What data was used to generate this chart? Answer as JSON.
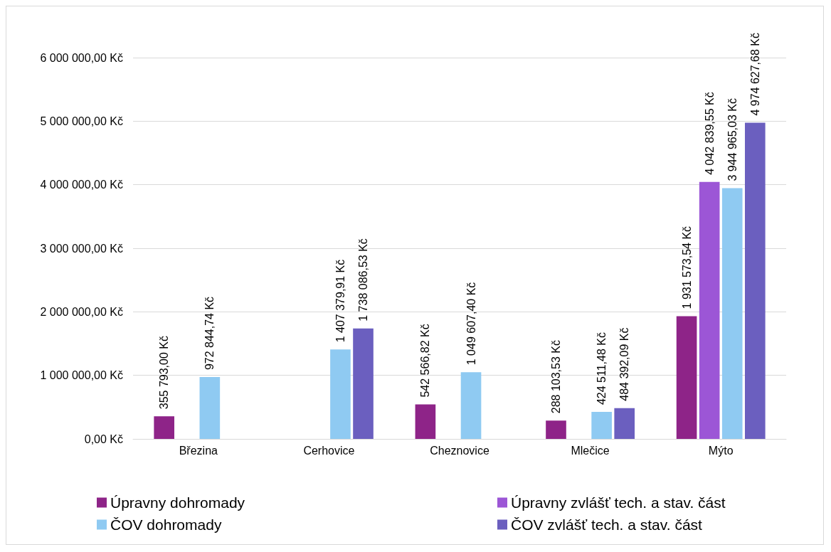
{
  "chart_data": {
    "type": "bar",
    "categories": [
      "Březina",
      "Cerhovice",
      "Cheznovice",
      "Mlečice",
      "Mýto"
    ],
    "series": [
      {
        "name": "Úpravny dohromady",
        "color": "#8e2488",
        "values": [
          355793.0,
          null,
          542566.82,
          288103.53,
          1931573.54
        ],
        "value_labels": [
          "355 793,00 Kč",
          null,
          "542 566,82 Kč",
          "288 103,53 Kč",
          "1 931 573,54 Kč"
        ]
      },
      {
        "name": "Úpravny zvlášť tech. a stav. část",
        "color": "#9c56d6",
        "values": [
          null,
          null,
          null,
          null,
          4042839.55
        ],
        "value_labels": [
          null,
          null,
          null,
          null,
          "4 042 839,55 Kč"
        ]
      },
      {
        "name": "ČOV dohromady",
        "color": "#8fcaf2",
        "values": [
          972844.74,
          1407379.91,
          1049607.4,
          424511.48,
          3944965.03
        ],
        "value_labels": [
          "972 844,74 Kč",
          "1 407 379,91 Kč",
          "1 049 607,40 Kč",
          "424 511,48 Kč",
          "3 944 965,03 Kč"
        ]
      },
      {
        "name": "ČOV zvlášť tech. a stav. část",
        "color": "#6b5fbf",
        "values": [
          null,
          1738086.53,
          null,
          484392.09,
          4974627.68
        ],
        "value_labels": [
          null,
          "1 738 086,53 Kč",
          null,
          "484 392,09 Kč",
          "4 974 627,68 Kč"
        ]
      }
    ],
    "ylim": [
      0,
      6000000
    ],
    "yticks": [
      {
        "value": 0,
        "label": "0,00 Kč"
      },
      {
        "value": 1000000,
        "label": "1 000 000,00 Kč"
      },
      {
        "value": 2000000,
        "label": "2 000 000,00 Kč"
      },
      {
        "value": 3000000,
        "label": "3 000 000,00 Kč"
      },
      {
        "value": 4000000,
        "label": "4 000 000,00 Kč"
      },
      {
        "value": 5000000,
        "label": "5 000 000,00 Kč"
      },
      {
        "value": 6000000,
        "label": "6 000 000,00 Kč"
      }
    ],
    "grid": "y",
    "legend": "bottom"
  }
}
